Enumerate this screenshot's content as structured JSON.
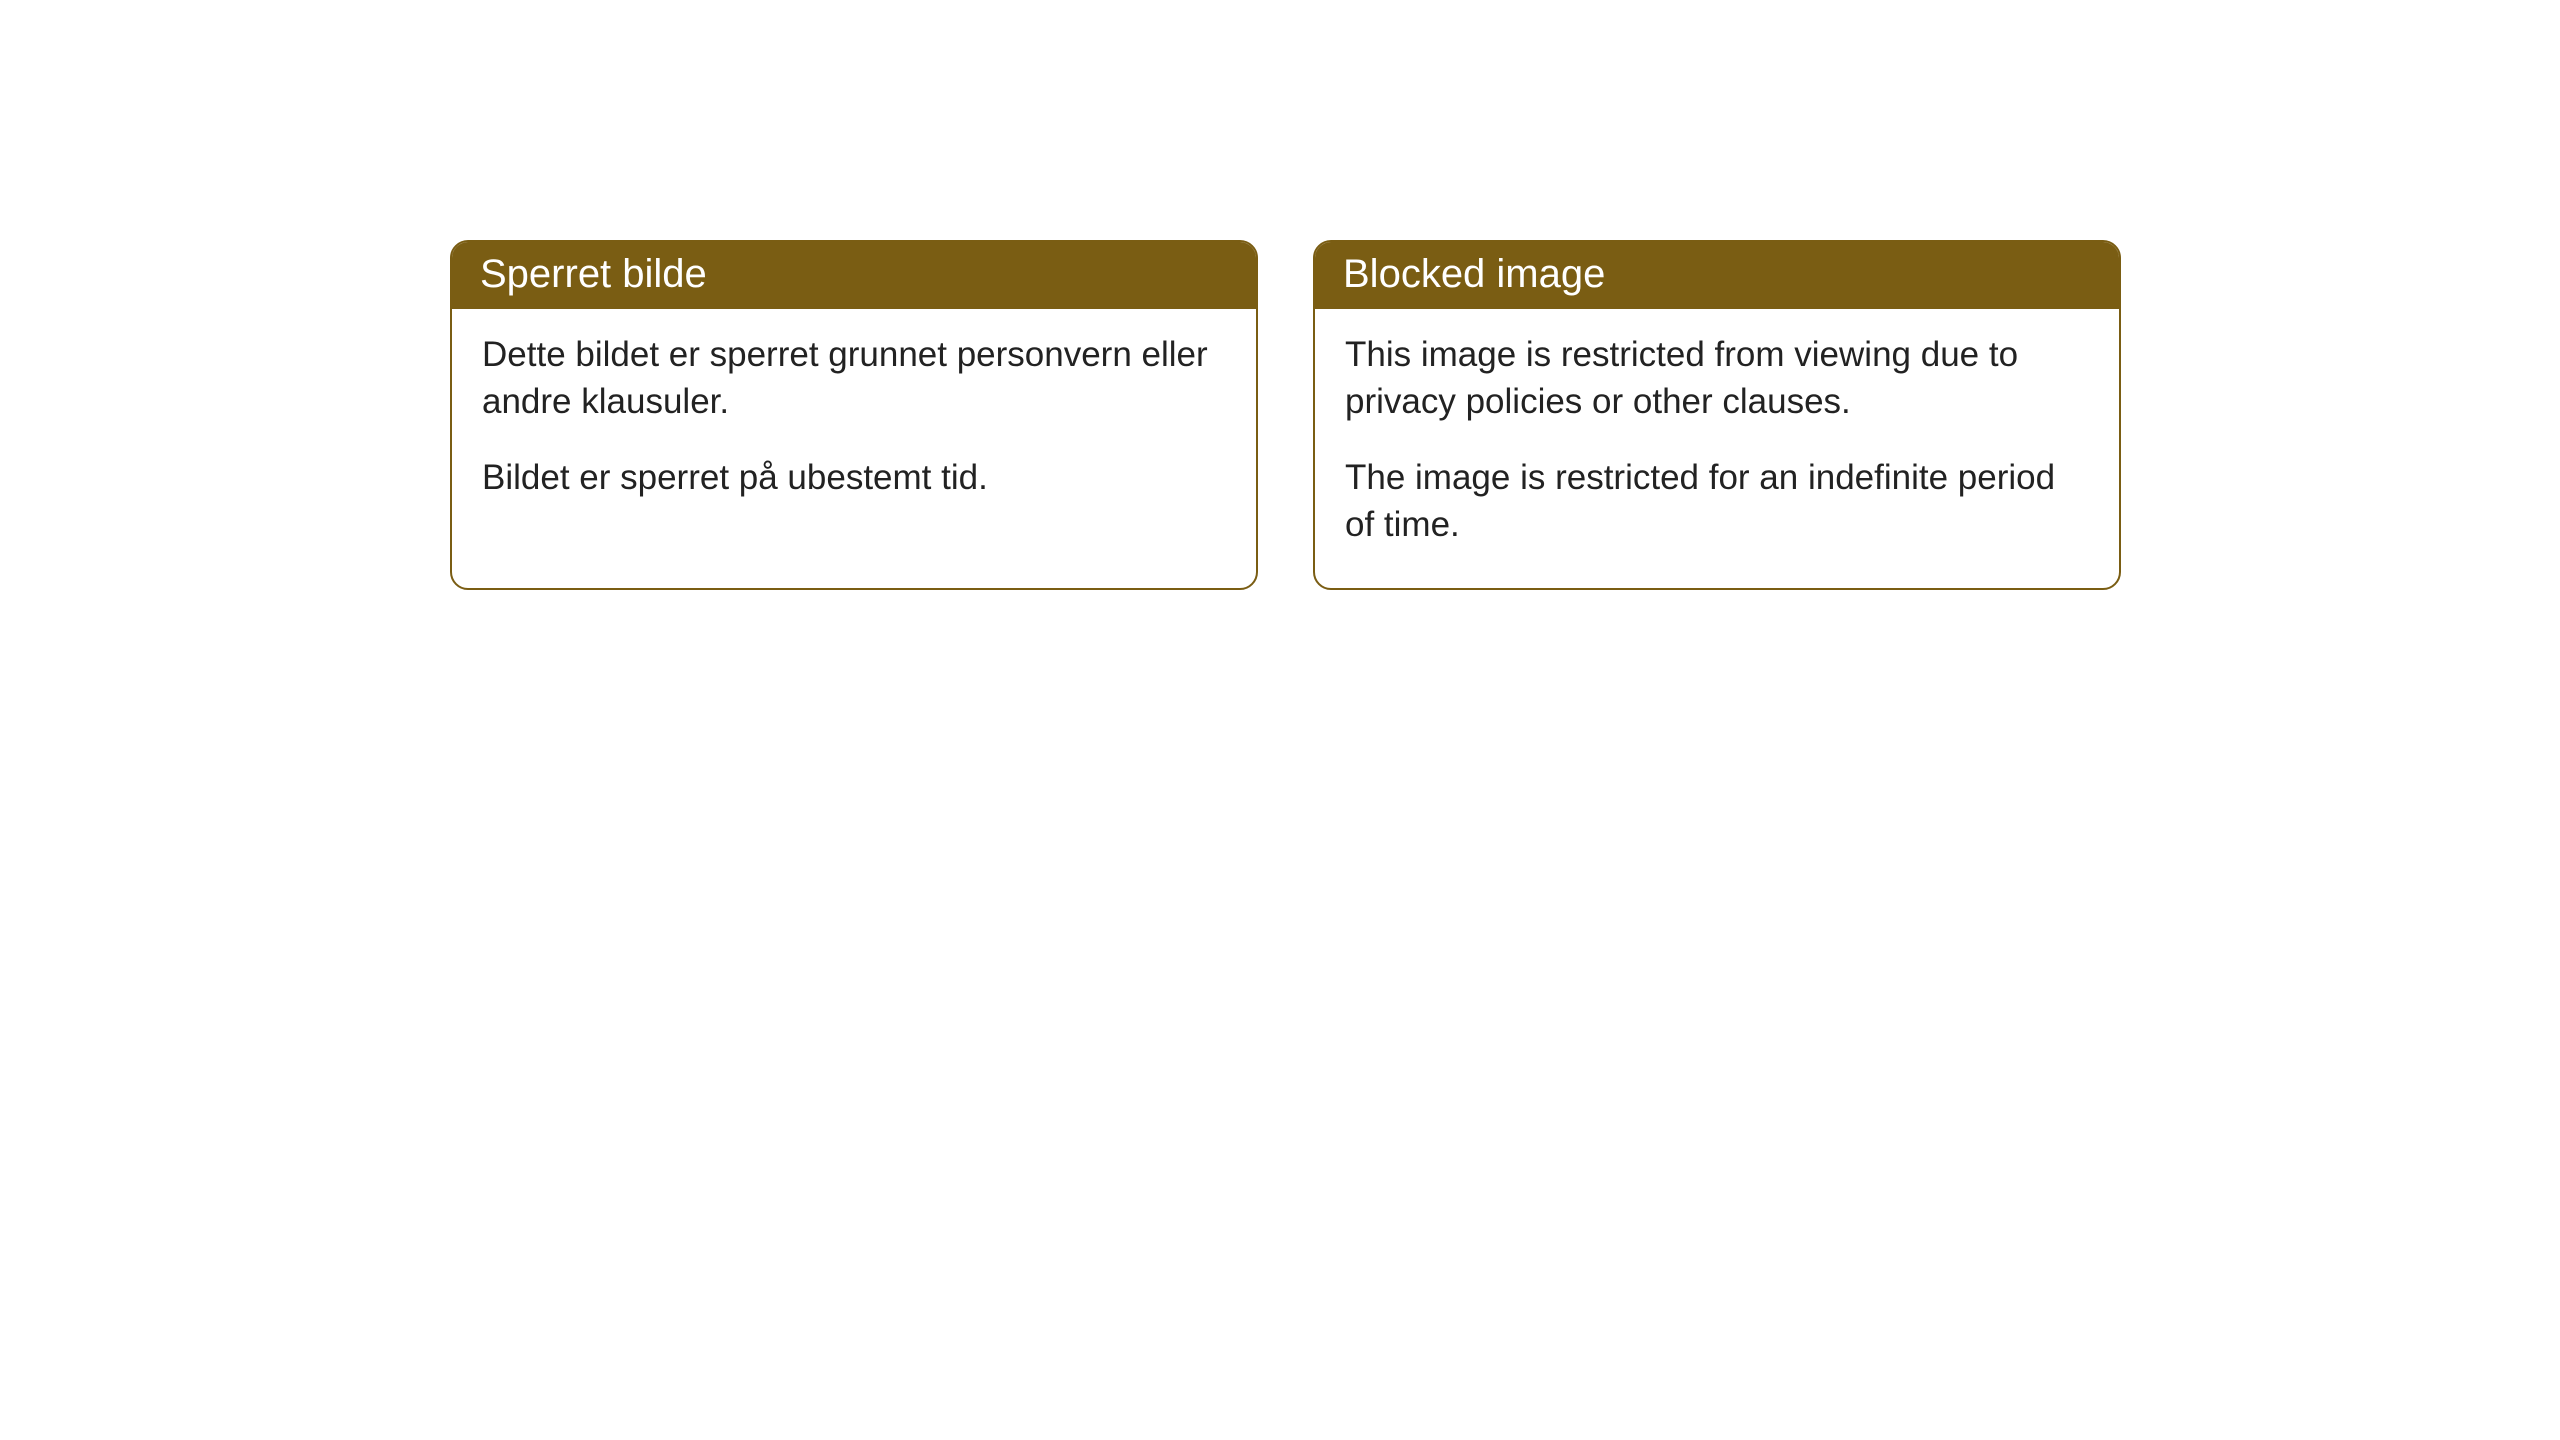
{
  "cards": [
    {
      "title": "Sperret bilde",
      "paragraph1": "Dette bildet er sperret grunnet personvern eller andre klausuler.",
      "paragraph2": "Bildet er sperret på ubestemt tid."
    },
    {
      "title": "Blocked image",
      "paragraph1": "This image is restricted from viewing due to privacy policies or other clauses.",
      "paragraph2": "The image is restricted for an indefinite period of time."
    }
  ],
  "style": {
    "header_bg": "#7a5d13",
    "header_text_color": "#ffffff",
    "border_color": "#7a5d13",
    "body_bg": "#ffffff",
    "body_text_color": "#222222",
    "border_radius": 18,
    "header_fontsize": 40,
    "body_fontsize": 35
  }
}
